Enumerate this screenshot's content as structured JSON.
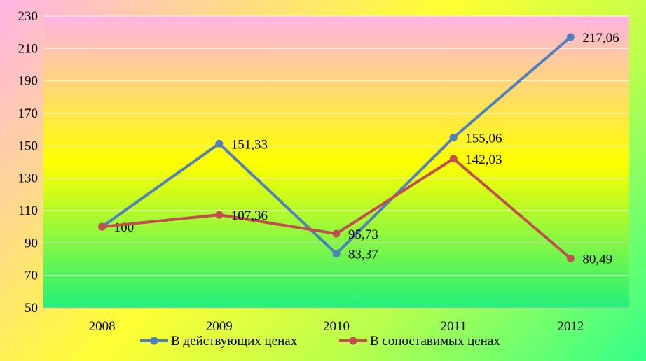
{
  "chart_data": {
    "type": "line",
    "categories": [
      "2008",
      "2009",
      "2010",
      "2011",
      "2012"
    ],
    "series": [
      {
        "name": "В действующих ценах",
        "color": "#4f81bd",
        "values": [
          100,
          151.33,
          83.37,
          155.06,
          217.06
        ],
        "labels": [
          "100",
          "151,33",
          "83,37",
          "155,06",
          "217,06"
        ]
      },
      {
        "name": "В сопоставимых ценах",
        "color": "#c0504d",
        "values": [
          100,
          107.36,
          95.73,
          142.03,
          80.49
        ],
        "labels": [
          "",
          "107,36",
          "95,73",
          "142,03",
          "80,49"
        ]
      }
    ],
    "ylim": [
      50,
      230
    ],
    "yticks": [
      "50",
      "70",
      "90",
      "110",
      "130",
      "150",
      "170",
      "190",
      "210",
      "230"
    ],
    "grid": true,
    "legend": "bottom"
  }
}
